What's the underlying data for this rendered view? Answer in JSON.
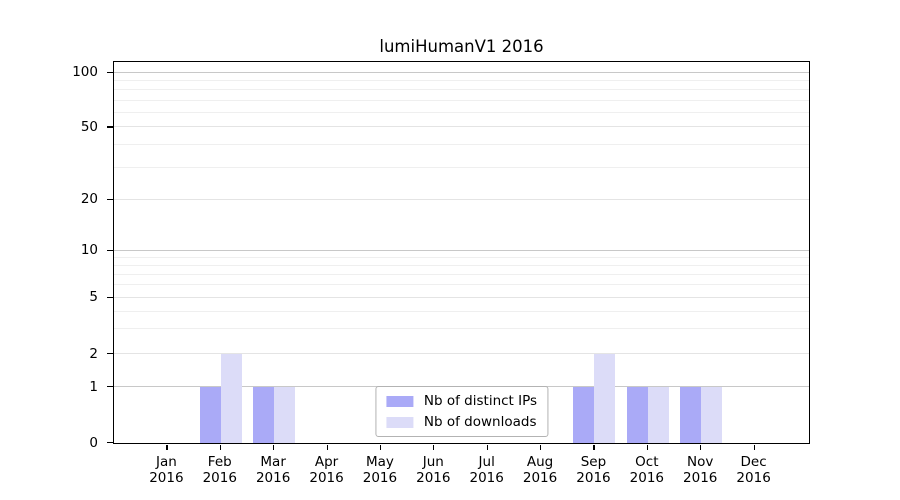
{
  "chart_data": {
    "type": "bar",
    "title": "lumiHumanV1 2016",
    "categories": [
      "Jan",
      "Feb",
      "Mar",
      "Apr",
      "May",
      "Jun",
      "Jul",
      "Aug",
      "Sep",
      "Oct",
      "Nov",
      "Dec"
    ],
    "category_year": "2016",
    "series": [
      {
        "name": "Nb of distinct IPs",
        "color": "#aaaaf7",
        "values": [
          0,
          1,
          1,
          0,
          0,
          0,
          0,
          0,
          1,
          1,
          1,
          0
        ]
      },
      {
        "name": "Nb of downloads",
        "color": "#dcdcf8",
        "values": [
          0,
          2,
          1,
          0,
          0,
          0,
          0,
          0,
          2,
          1,
          1,
          0
        ]
      }
    ],
    "xlabel": "",
    "ylabel": "",
    "yscale": "log-like with 0 baseline",
    "y_ticks": [
      0,
      1,
      2,
      5,
      10,
      20,
      50,
      100
    ],
    "y_minor_ticks": [
      3,
      4,
      6,
      7,
      8,
      9,
      30,
      40,
      60,
      70,
      80,
      90
    ],
    "ylim": [
      0,
      110
    ],
    "grid": "horizontal",
    "legend_position": "lower center",
    "colors": {
      "decade_gridline": "#c8c8c8",
      "mid_gridline": "#e4e4e4",
      "minor_gridline": "#efefef",
      "axis": "#000000",
      "bar_dark": "#aaaaf7",
      "bar_light": "#dcdcf8"
    }
  }
}
